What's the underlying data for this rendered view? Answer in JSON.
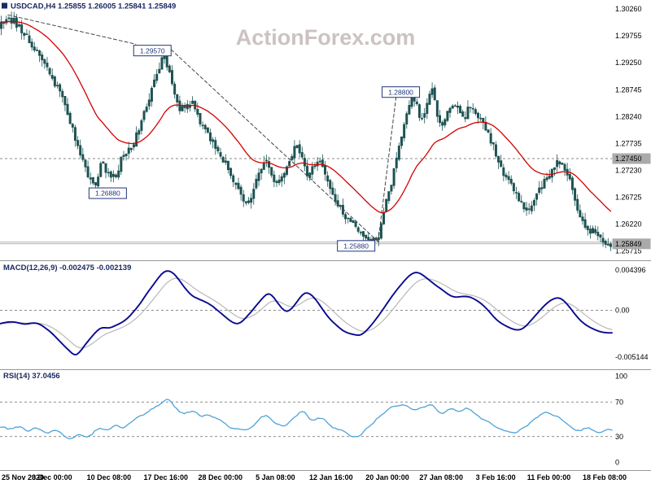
{
  "header": {
    "symbol": "USDCAD,H4",
    "open": "1.25855",
    "high": "1.26005",
    "low": "1.25841",
    "close": "1.25849",
    "display": "USDCAD,H4  1.25855 1.26005 1.25841 1.25849"
  },
  "watermark": "ActionForex.com",
  "colors": {
    "background": "#ffffff",
    "candle": "#1e5353",
    "ma_line": "#d40000",
    "macd_line": "#0a0a8f",
    "macd_signal": "#b8b8b8",
    "rsi_line": "#4fa3d8",
    "watermark": "#cdc2c2",
    "header_text": "#1b2a63",
    "axis_text": "#000000",
    "annotation": "#23357a",
    "level_label_bg": "#aaaaaa",
    "grid": "#666666",
    "separator": "#999999",
    "trendline": "#444444",
    "support_line": "#999999"
  },
  "chart_data": [
    {
      "type": "candlestick",
      "name": "price",
      "symbol": "USDCAD",
      "timeframe": "H4",
      "ohlc": {
        "open": 1.25855,
        "high": 1.26005,
        "low": 1.25841,
        "close": 1.25849
      },
      "ylim": [
        1.2554,
        1.3043
      ],
      "y_ticks": [
        "1.30260",
        "1.29755",
        "1.29250",
        "1.28745",
        "1.28240",
        "1.27735",
        "1.27230",
        "1.26725",
        "1.26220",
        "1.25715"
      ],
      "x_axis_labels": [
        "25 Nov 2020",
        "3 Dec 00:00",
        "10 Dec 08:00",
        "17 Dec 16:00",
        "28 Dec 00:00",
        "5 Jan 08:00",
        "12 Jan 16:00",
        "20 Jan 00:00",
        "27 Jan 08:00",
        "3 Feb 16:00",
        "11 Feb 00:00",
        "18 Feb 08:00"
      ],
      "x_axis_positions": [
        0.0,
        0.085,
        0.178,
        0.271,
        0.36,
        0.45,
        0.541,
        0.633,
        0.721,
        0.81,
        0.897,
        0.988
      ],
      "resistance_dashed_level": 1.2745,
      "support_levels": [
        1.2588,
        1.25849
      ],
      "level_labels": [
        {
          "text": "1.27450",
          "value": 1.2745
        },
        {
          "text": "1.25849",
          "value": 1.25849
        }
      ],
      "annotations": [
        {
          "text": "1.29570",
          "x": 0.249,
          "y_value": 1.2948
        },
        {
          "text": "1.28800",
          "x": 0.655,
          "y_value": 1.287
        },
        {
          "text": "1.26880",
          "x": 0.176,
          "y_value": 1.268
        },
        {
          "text": "1.25880",
          "x": 0.582,
          "y_value": 1.2581
        }
      ],
      "trendlines_dashed": [
        [
          [
            0.013,
            1.3015
          ],
          [
            0.222,
            1.296
          ]
        ],
        [
          [
            0.273,
            1.2957
          ],
          [
            0.618,
            1.2589
          ]
        ],
        [
          [
            0.618,
            1.2589
          ],
          [
            0.648,
            1.2868
          ]
        ]
      ],
      "moving_average": {
        "type": "EMA",
        "period": 30,
        "color_key": "ma_line"
      },
      "close_path_anchors": [
        [
          0.0,
          1.2992
        ],
        [
          0.012,
          1.3012
        ],
        [
          0.025,
          1.3002
        ],
        [
          0.04,
          1.298
        ],
        [
          0.055,
          1.2958
        ],
        [
          0.07,
          1.293
        ],
        [
          0.085,
          1.2898
        ],
        [
          0.1,
          1.2868
        ],
        [
          0.115,
          1.282
        ],
        [
          0.13,
          1.2768
        ],
        [
          0.145,
          1.2718
        ],
        [
          0.158,
          1.2695
        ],
        [
          0.168,
          1.2738
        ],
        [
          0.178,
          1.2718
        ],
        [
          0.19,
          1.2708
        ],
        [
          0.2,
          1.2742
        ],
        [
          0.215,
          1.2762
        ],
        [
          0.23,
          1.2802
        ],
        [
          0.245,
          1.2852
        ],
        [
          0.258,
          1.29
        ],
        [
          0.27,
          1.2942
        ],
        [
          0.278,
          1.2908
        ],
        [
          0.287,
          1.2865
        ],
        [
          0.296,
          1.2838
        ],
        [
          0.306,
          1.2842
        ],
        [
          0.316,
          1.2856
        ],
        [
          0.326,
          1.2822
        ],
        [
          0.336,
          1.2802
        ],
        [
          0.346,
          1.2778
        ],
        [
          0.356,
          1.2768
        ],
        [
          0.366,
          1.2745
        ],
        [
          0.376,
          1.2726
        ],
        [
          0.386,
          1.2702
        ],
        [
          0.396,
          1.2676
        ],
        [
          0.406,
          1.2656
        ],
        [
          0.416,
          1.2686
        ],
        [
          0.426,
          1.2722
        ],
        [
          0.436,
          1.2746
        ],
        [
          0.446,
          1.2712
        ],
        [
          0.456,
          1.2692
        ],
        [
          0.466,
          1.2722
        ],
        [
          0.476,
          1.2748
        ],
        [
          0.486,
          1.2772
        ],
        [
          0.496,
          1.2746
        ],
        [
          0.506,
          1.2712
        ],
        [
          0.516,
          1.2736
        ],
        [
          0.526,
          1.2748
        ],
        [
          0.536,
          1.2712
        ],
        [
          0.548,
          1.2668
        ],
        [
          0.56,
          1.2645
        ],
        [
          0.572,
          1.2632
        ],
        [
          0.585,
          1.2618
        ],
        [
          0.598,
          1.2602
        ],
        [
          0.61,
          1.2592
        ],
        [
          0.618,
          1.2589
        ],
        [
          0.628,
          1.2638
        ],
        [
          0.64,
          1.2692
        ],
        [
          0.65,
          1.2742
        ],
        [
          0.66,
          1.2802
        ],
        [
          0.668,
          1.2842
        ],
        [
          0.676,
          1.2866
        ],
        [
          0.684,
          1.2842
        ],
        [
          0.692,
          1.2812
        ],
        [
          0.7,
          1.2852
        ],
        [
          0.708,
          1.2872
        ],
        [
          0.716,
          1.2832
        ],
        [
          0.724,
          1.2802
        ],
        [
          0.732,
          1.2832
        ],
        [
          0.74,
          1.2852
        ],
        [
          0.75,
          1.2842
        ],
        [
          0.76,
          1.2822
        ],
        [
          0.77,
          1.2842
        ],
        [
          0.78,
          1.2836
        ],
        [
          0.79,
          1.2812
        ],
        [
          0.8,
          1.279
        ],
        [
          0.812,
          1.2756
        ],
        [
          0.824,
          1.2722
        ],
        [
          0.836,
          1.2696
        ],
        [
          0.848,
          1.2672
        ],
        [
          0.858,
          1.2652
        ],
        [
          0.866,
          1.2642
        ],
        [
          0.876,
          1.2666
        ],
        [
          0.886,
          1.2692
        ],
        [
          0.896,
          1.2712
        ],
        [
          0.906,
          1.2726
        ],
        [
          0.915,
          1.2742
        ],
        [
          0.925,
          1.2722
        ],
        [
          0.933,
          1.2702
        ],
        [
          0.941,
          1.2668
        ],
        [
          0.949,
          1.2642
        ],
        [
          0.957,
          1.2622
        ],
        [
          0.965,
          1.2606
        ],
        [
          0.972,
          1.2618
        ],
        [
          0.98,
          1.2596
        ],
        [
          0.99,
          1.2582
        ],
        [
          1.0,
          1.25849
        ]
      ]
    },
    {
      "type": "line",
      "name": "MACD",
      "label": "MACD(12,26,9) -0.002475 -0.002139",
      "params": "12,26,9",
      "current_values": [
        -0.002475,
        -0.002139
      ],
      "ylim": [
        -0.0063,
        0.0053
      ],
      "y_ticks": [
        {
          "text": "0.004396",
          "value": 0.004396
        },
        {
          "text": "0.00",
          "value": 0
        },
        {
          "text": "-0.005144",
          "value": -0.005144
        }
      ],
      "zero_dashed": true,
      "anchors": [
        [
          0.0,
          -0.0015
        ],
        [
          0.02,
          -0.0012
        ],
        [
          0.04,
          -0.0016
        ],
        [
          0.06,
          -0.0013
        ],
        [
          0.08,
          -0.0022
        ],
        [
          0.1,
          -0.0035
        ],
        [
          0.118,
          -0.0048
        ],
        [
          0.125,
          -0.0051
        ],
        [
          0.135,
          -0.0042
        ],
        [
          0.15,
          -0.0028
        ],
        [
          0.165,
          -0.0018
        ],
        [
          0.18,
          -0.002
        ],
        [
          0.195,
          -0.0015
        ],
        [
          0.21,
          -0.0008
        ],
        [
          0.225,
          0.0003
        ],
        [
          0.24,
          0.0018
        ],
        [
          0.255,
          0.0033
        ],
        [
          0.268,
          0.0043
        ],
        [
          0.278,
          0.0044
        ],
        [
          0.29,
          0.0036
        ],
        [
          0.3,
          0.0026
        ],
        [
          0.315,
          0.0014
        ],
        [
          0.33,
          0.0011
        ],
        [
          0.345,
          0.0006
        ],
        [
          0.36,
          -0.0003
        ],
        [
          0.375,
          -0.0012
        ],
        [
          0.39,
          -0.0016
        ],
        [
          0.4,
          -0.001
        ],
        [
          0.415,
          0.0002
        ],
        [
          0.43,
          0.0014
        ],
        [
          0.44,
          0.0021
        ],
        [
          0.45,
          0.0012
        ],
        [
          0.46,
          0.0002
        ],
        [
          0.47,
          -0.0004
        ],
        [
          0.48,
          0.0004
        ],
        [
          0.49,
          0.0014
        ],
        [
          0.5,
          0.0022
        ],
        [
          0.51,
          0.0016
        ],
        [
          0.52,
          0.0008
        ],
        [
          0.53,
          -0.0002
        ],
        [
          0.545,
          -0.0014
        ],
        [
          0.56,
          -0.0022
        ],
        [
          0.575,
          -0.0027
        ],
        [
          0.59,
          -0.0028
        ],
        [
          0.605,
          -0.0018
        ],
        [
          0.62,
          -0.0005
        ],
        [
          0.635,
          0.001
        ],
        [
          0.65,
          0.0024
        ],
        [
          0.665,
          0.0036
        ],
        [
          0.678,
          0.0043
        ],
        [
          0.69,
          0.004
        ],
        [
          0.7,
          0.0034
        ],
        [
          0.715,
          0.0026
        ],
        [
          0.73,
          0.0018
        ],
        [
          0.745,
          0.0013
        ],
        [
          0.76,
          0.0016
        ],
        [
          0.775,
          0.0013
        ],
        [
          0.79,
          0.0005
        ],
        [
          0.805,
          -0.0006
        ],
        [
          0.82,
          -0.0015
        ],
        [
          0.835,
          -0.0021
        ],
        [
          0.85,
          -0.0023
        ],
        [
          0.862,
          -0.0016
        ],
        [
          0.875,
          -0.0006
        ],
        [
          0.888,
          0.0004
        ],
        [
          0.9,
          0.0012
        ],
        [
          0.912,
          0.0015
        ],
        [
          0.925,
          0.0008
        ],
        [
          0.937,
          -0.0002
        ],
        [
          0.95,
          -0.0012
        ],
        [
          0.963,
          -0.0019
        ],
        [
          0.976,
          -0.0023
        ],
        [
          0.99,
          -0.0025
        ],
        [
          1.0,
          -0.002475
        ]
      ]
    },
    {
      "type": "line",
      "name": "RSI",
      "label": "RSI(14) 37.0456",
      "period": 14,
      "current_value": 37.0456,
      "ylim": [
        -6,
        106
      ],
      "y_ticks": [
        {
          "text": "100",
          "value": 100
        },
        {
          "text": "70",
          "value": 70
        },
        {
          "text": "30",
          "value": 30
        },
        {
          "text": "0",
          "value": 0
        }
      ],
      "dashed_levels": [
        70,
        30
      ],
      "anchors": [
        [
          0.0,
          42
        ],
        [
          0.015,
          38
        ],
        [
          0.03,
          44
        ],
        [
          0.045,
          36
        ],
        [
          0.06,
          42
        ],
        [
          0.075,
          33
        ],
        [
          0.09,
          38
        ],
        [
          0.105,
          30
        ],
        [
          0.115,
          26
        ],
        [
          0.13,
          34
        ],
        [
          0.145,
          28
        ],
        [
          0.16,
          40
        ],
        [
          0.175,
          36
        ],
        [
          0.19,
          44
        ],
        [
          0.205,
          40
        ],
        [
          0.22,
          50
        ],
        [
          0.235,
          55
        ],
        [
          0.25,
          62
        ],
        [
          0.265,
          70
        ],
        [
          0.275,
          76
        ],
        [
          0.285,
          64
        ],
        [
          0.3,
          56
        ],
        [
          0.315,
          60
        ],
        [
          0.33,
          52
        ],
        [
          0.345,
          56
        ],
        [
          0.36,
          48
        ],
        [
          0.375,
          42
        ],
        [
          0.39,
          38
        ],
        [
          0.405,
          35
        ],
        [
          0.42,
          48
        ],
        [
          0.435,
          55
        ],
        [
          0.45,
          46
        ],
        [
          0.465,
          42
        ],
        [
          0.48,
          52
        ],
        [
          0.495,
          60
        ],
        [
          0.51,
          48
        ],
        [
          0.525,
          52
        ],
        [
          0.54,
          42
        ],
        [
          0.555,
          36
        ],
        [
          0.57,
          32
        ],
        [
          0.585,
          28
        ],
        [
          0.6,
          40
        ],
        [
          0.615,
          50
        ],
        [
          0.63,
          58
        ],
        [
          0.645,
          64
        ],
        [
          0.66,
          70
        ],
        [
          0.675,
          60
        ],
        [
          0.69,
          64
        ],
        [
          0.705,
          68
        ],
        [
          0.72,
          58
        ],
        [
          0.735,
          62
        ],
        [
          0.75,
          58
        ],
        [
          0.765,
          63
        ],
        [
          0.78,
          55
        ],
        [
          0.795,
          48
        ],
        [
          0.81,
          42
        ],
        [
          0.825,
          36
        ],
        [
          0.84,
          32
        ],
        [
          0.855,
          40
        ],
        [
          0.87,
          48
        ],
        [
          0.885,
          55
        ],
        [
          0.9,
          58
        ],
        [
          0.915,
          50
        ],
        [
          0.93,
          44
        ],
        [
          0.945,
          36
        ],
        [
          0.96,
          42
        ],
        [
          0.975,
          34
        ],
        [
          0.99,
          38
        ],
        [
          1.0,
          37.0456
        ]
      ]
    }
  ]
}
